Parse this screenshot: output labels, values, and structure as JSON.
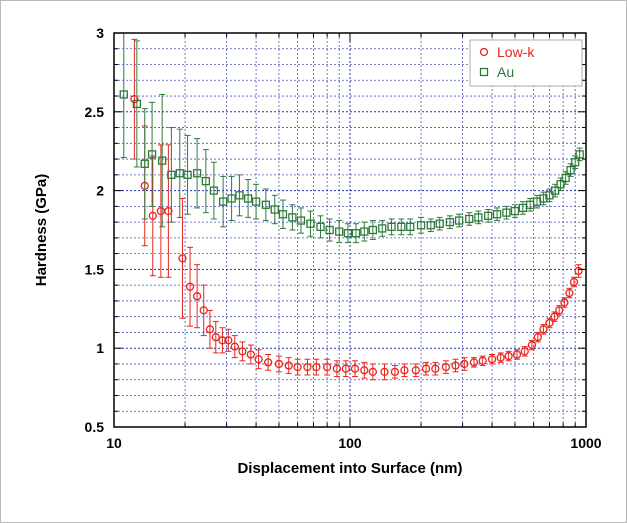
{
  "chart_data": {
    "type": "scatter",
    "title": "",
    "xlabel": "Displacement into Surface (nm)",
    "ylabel": "Hardness (GPa)",
    "xscale": "log",
    "xlim": [
      10,
      1000
    ],
    "ylim": [
      0.5,
      3
    ],
    "x_tick_labels": [
      "10",
      "100",
      "1000"
    ],
    "y_tick_labels": [
      "0.5",
      "1",
      "1.5",
      "2",
      "2.5",
      "3"
    ],
    "grid": true,
    "legend_position": "top-right",
    "marker_size": 7,
    "series": [
      {
        "name": "Low-k",
        "marker": "circle",
        "color": "#e8251c",
        "x": [
          12.2,
          13.5,
          14.6,
          15.8,
          17.0,
          19.5,
          21.0,
          22.5,
          24.0,
          25.5,
          27.0,
          28.8,
          30.5,
          32.5,
          35.0,
          38,
          41,
          45,
          50,
          55,
          60,
          66,
          72,
          80,
          88,
          96,
          105,
          115,
          125,
          140,
          155,
          170,
          190,
          210,
          230,
          255,
          280,
          305,
          335,
          365,
          400,
          435,
          470,
          510,
          550,
          590,
          625,
          660,
          700,
          735,
          770,
          810,
          850,
          890,
          930
        ],
        "y": [
          2.58,
          2.03,
          1.84,
          1.87,
          1.87,
          1.57,
          1.39,
          1.33,
          1.24,
          1.12,
          1.07,
          1.05,
          1.05,
          1.01,
          0.98,
          0.96,
          0.93,
          0.91,
          0.9,
          0.89,
          0.88,
          0.88,
          0.88,
          0.88,
          0.87,
          0.87,
          0.87,
          0.86,
          0.85,
          0.85,
          0.85,
          0.86,
          0.86,
          0.87,
          0.87,
          0.88,
          0.89,
          0.9,
          0.91,
          0.92,
          0.93,
          0.94,
          0.95,
          0.96,
          0.98,
          1.02,
          1.07,
          1.12,
          1.16,
          1.2,
          1.24,
          1.29,
          1.35,
          1.42,
          1.49
        ],
        "error": [
          0.38,
          0.38,
          0.38,
          0.42,
          0.42,
          0.38,
          0.25,
          0.2,
          0.16,
          0.12,
          0.1,
          0.08,
          0.07,
          0.07,
          0.06,
          0.06,
          0.06,
          0.05,
          0.05,
          0.05,
          0.05,
          0.05,
          0.05,
          0.05,
          0.05,
          0.05,
          0.05,
          0.05,
          0.05,
          0.05,
          0.04,
          0.04,
          0.04,
          0.04,
          0.04,
          0.04,
          0.04,
          0.04,
          0.03,
          0.03,
          0.03,
          0.03,
          0.03,
          0.03,
          0.03,
          0.03,
          0.03,
          0.03,
          0.03,
          0.03,
          0.03,
          0.03,
          0.03,
          0.03,
          0.04
        ]
      },
      {
        "name": "Au",
        "marker": "square",
        "color": "#2e7a3a",
        "x": [
          11.0,
          12.5,
          13.5,
          14.5,
          16.0,
          17.5,
          19.0,
          20.5,
          22.5,
          24.5,
          26.5,
          29.0,
          31.5,
          34,
          37,
          40,
          44,
          48,
          52,
          57,
          62,
          68,
          75,
          82,
          90,
          98,
          106,
          115,
          125,
          137,
          150,
          165,
          180,
          200,
          220,
          240,
          265,
          290,
          320,
          350,
          385,
          420,
          460,
          500,
          540,
          580,
          620,
          660,
          700,
          740,
          780,
          820,
          860,
          900,
          940
        ],
        "y": [
          2.61,
          2.55,
          2.17,
          2.23,
          2.19,
          2.1,
          2.11,
          2.1,
          2.11,
          2.06,
          2.0,
          1.93,
          1.95,
          1.97,
          1.95,
          1.93,
          1.91,
          1.88,
          1.85,
          1.83,
          1.81,
          1.79,
          1.77,
          1.75,
          1.74,
          1.73,
          1.73,
          1.74,
          1.75,
          1.76,
          1.77,
          1.77,
          1.77,
          1.78,
          1.78,
          1.79,
          1.8,
          1.81,
          1.82,
          1.83,
          1.84,
          1.85,
          1.86,
          1.87,
          1.89,
          1.91,
          1.93,
          1.95,
          1.97,
          2.0,
          2.04,
          2.08,
          2.13,
          2.18,
          2.23
        ],
        "error": [
          0.4,
          0.4,
          0.35,
          0.33,
          0.42,
          0.3,
          0.28,
          0.25,
          0.22,
          0.2,
          0.18,
          0.16,
          0.14,
          0.13,
          0.12,
          0.11,
          0.1,
          0.09,
          0.09,
          0.08,
          0.08,
          0.08,
          0.07,
          0.07,
          0.07,
          0.06,
          0.06,
          0.06,
          0.06,
          0.05,
          0.05,
          0.05,
          0.05,
          0.05,
          0.04,
          0.04,
          0.04,
          0.04,
          0.04,
          0.04,
          0.04,
          0.04,
          0.04,
          0.04,
          0.04,
          0.04,
          0.04,
          0.04,
          0.04,
          0.04,
          0.04,
          0.04,
          0.04,
          0.04,
          0.04
        ]
      }
    ]
  }
}
